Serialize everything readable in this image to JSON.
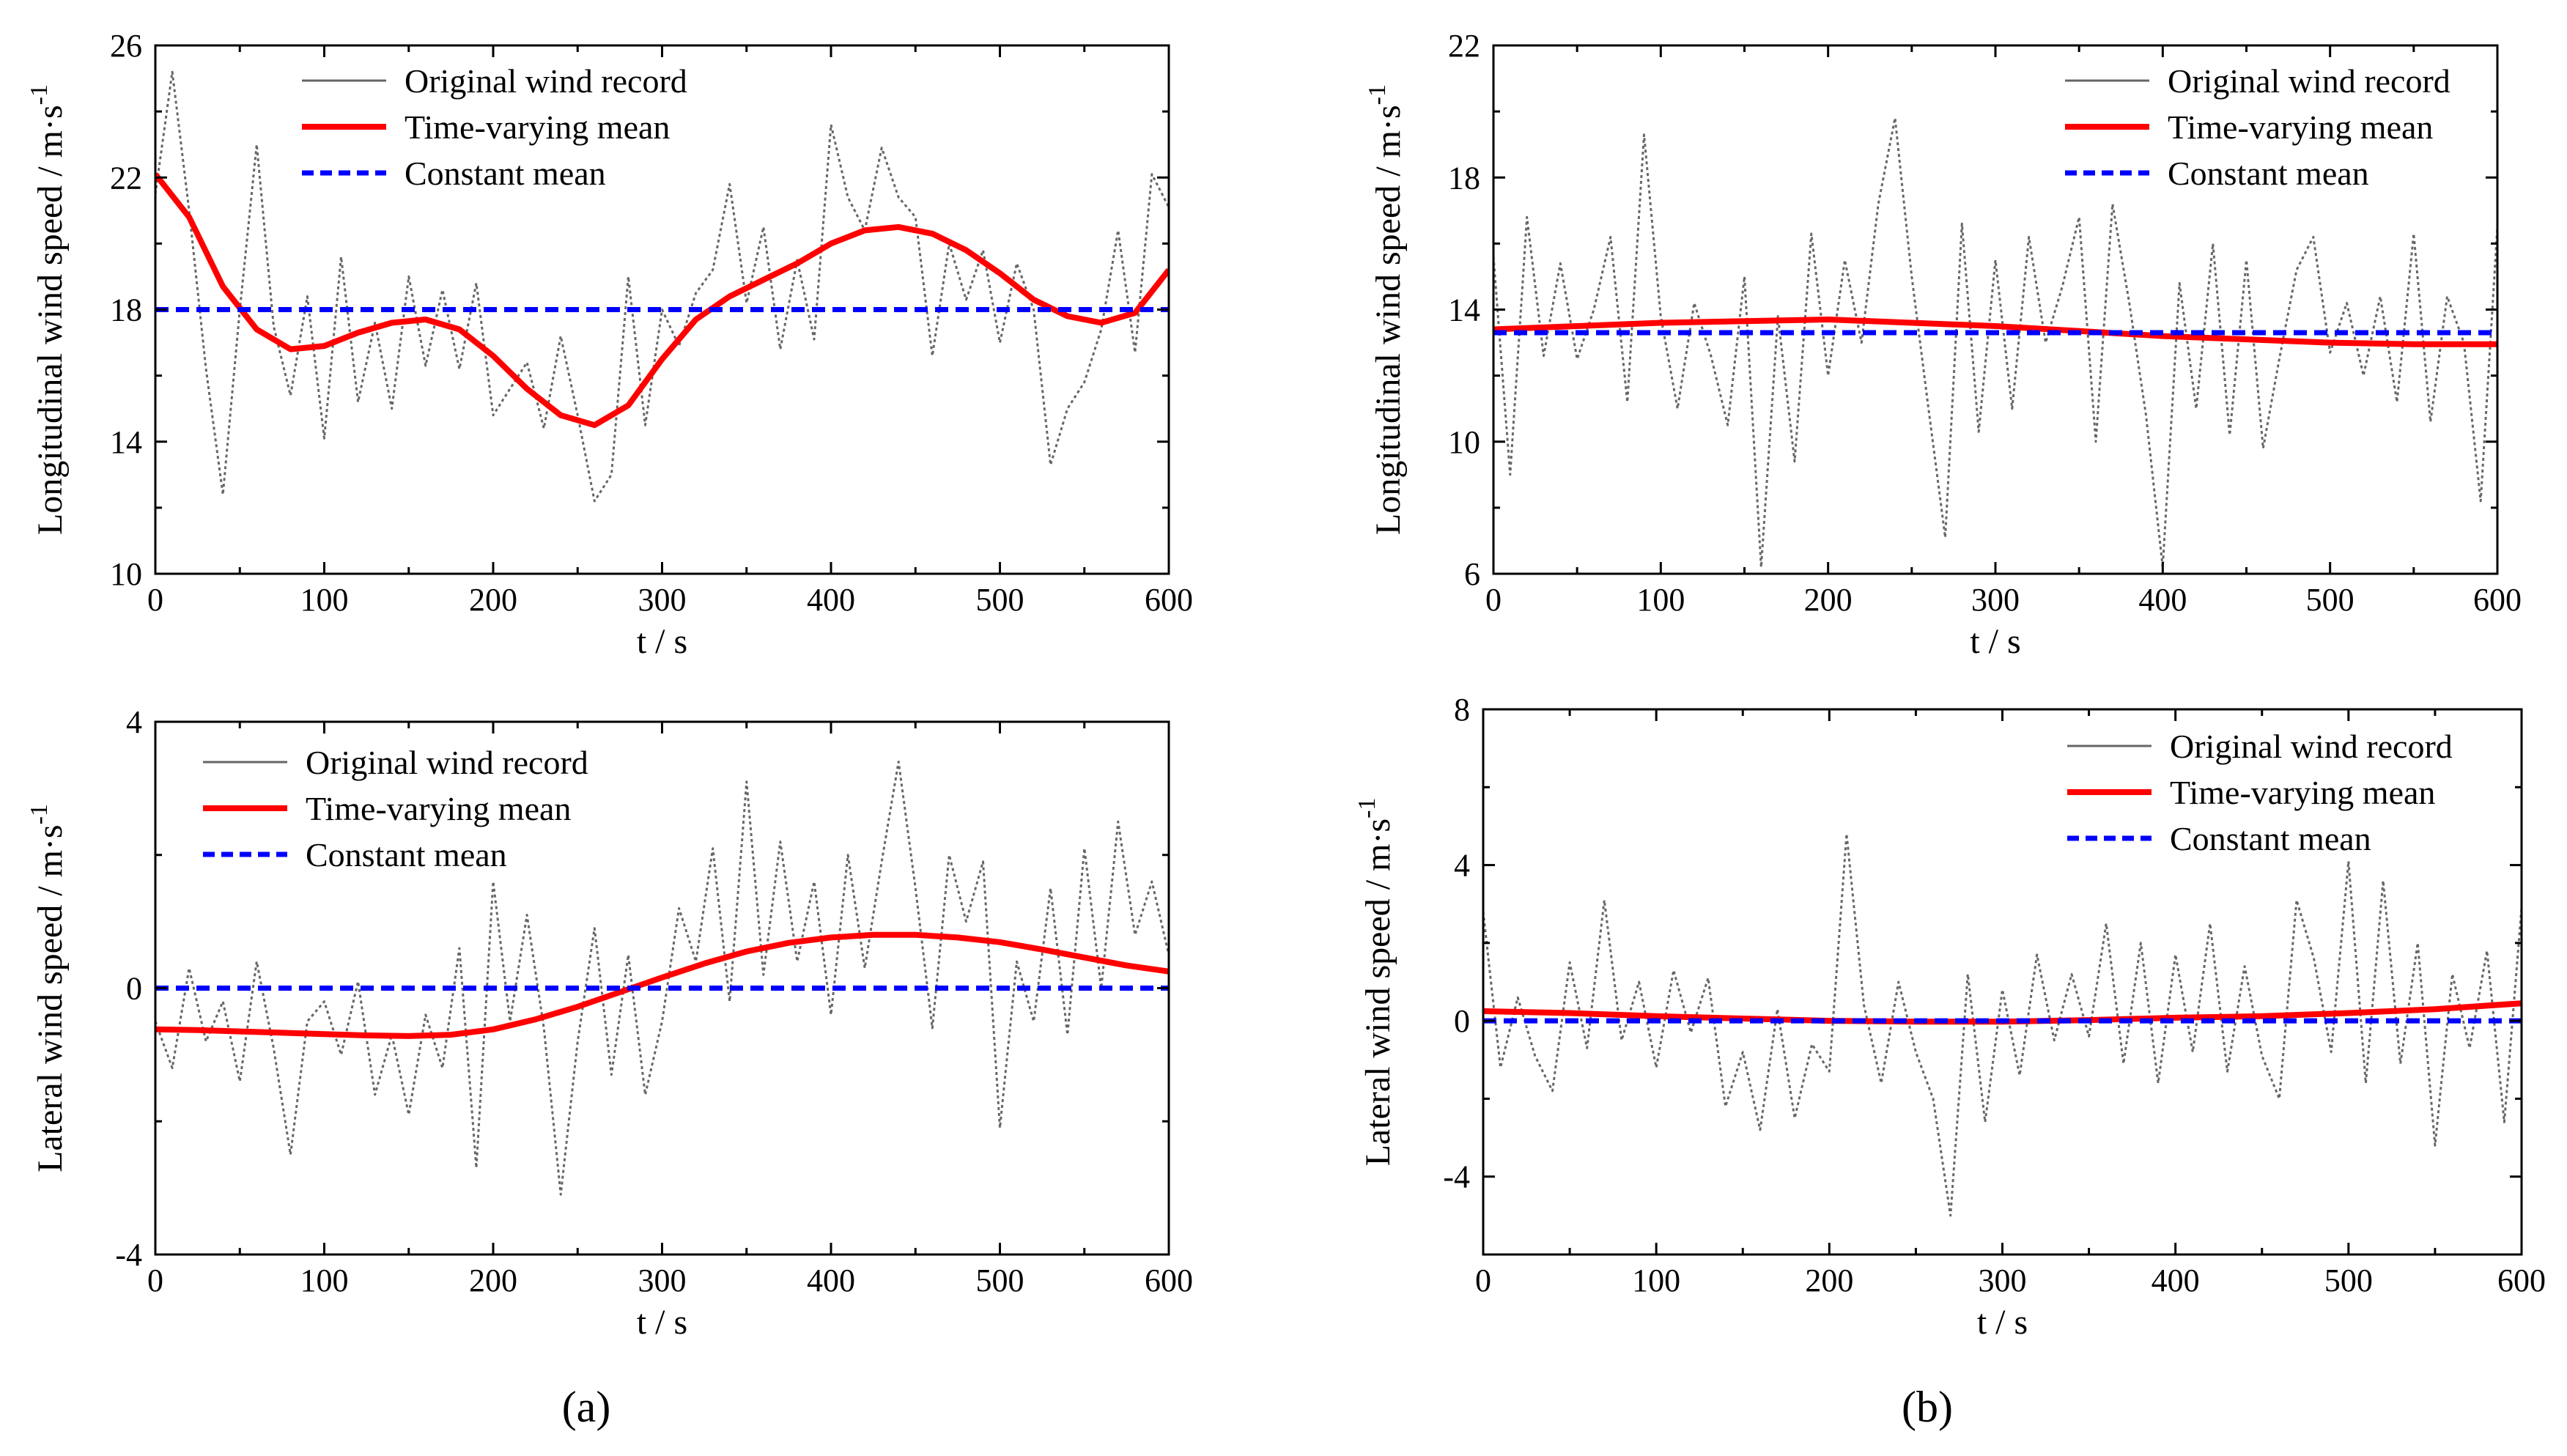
{
  "panel_labels": [
    "(a)",
    "(b)"
  ],
  "colors": {
    "raw": "#666666",
    "tv": "#ff0000",
    "const": "#0000ff",
    "axis": "#000000"
  },
  "chart_data": [
    {
      "type": "line",
      "panel": "a",
      "position_in_grid": "top-left",
      "xlabel": "t / s",
      "ylabel": "Longitudinal wind speed / m·s",
      "ylabel_sup": "-1",
      "xlim": [
        0,
        600
      ],
      "ylim": [
        10,
        26
      ],
      "xticks": [
        0,
        100,
        200,
        300,
        400,
        500,
        600
      ],
      "yticks": [
        10,
        14,
        18,
        22,
        26
      ],
      "legend_position": "top-left",
      "series": [
        {
          "name": "Original wind record",
          "style": "dotted-gray",
          "x": [
            0,
            10,
            20,
            30,
            40,
            50,
            60,
            70,
            80,
            90,
            100,
            110,
            120,
            130,
            140,
            150,
            160,
            170,
            180,
            190,
            200,
            210,
            220,
            230,
            240,
            250,
            260,
            270,
            280,
            290,
            300,
            310,
            320,
            330,
            340,
            350,
            360,
            370,
            380,
            390,
            400,
            410,
            420,
            430,
            440,
            450,
            460,
            470,
            480,
            490,
            500,
            510,
            520,
            530,
            540,
            550,
            560,
            570,
            580,
            590,
            600
          ],
          "y": [
            21.5,
            25.2,
            21.0,
            16.2,
            12.4,
            18.0,
            23.0,
            17.5,
            15.4,
            18.4,
            14.1,
            19.6,
            15.2,
            17.6,
            15.0,
            19.0,
            16.3,
            18.6,
            16.2,
            18.8,
            14.8,
            15.6,
            16.4,
            14.4,
            17.2,
            14.8,
            12.2,
            13.0,
            19.0,
            14.5,
            18.0,
            16.9,
            18.5,
            19.2,
            21.8,
            18.2,
            20.5,
            16.8,
            19.5,
            17.1,
            23.6,
            21.4,
            20.4,
            22.9,
            21.4,
            20.8,
            16.6,
            20.0,
            18.3,
            19.8,
            17.0,
            19.4,
            18.0,
            13.3,
            15.0,
            15.8,
            17.4,
            20.4,
            16.7,
            22.1,
            21.1
          ]
        },
        {
          "name": "Time-varying mean",
          "style": "solid-red",
          "x": [
            0,
            20,
            40,
            60,
            80,
            100,
            120,
            140,
            160,
            180,
            200,
            220,
            240,
            260,
            280,
            300,
            320,
            340,
            360,
            380,
            400,
            420,
            440,
            460,
            480,
            500,
            520,
            540,
            560,
            580,
            600
          ],
          "y": [
            22.1,
            20.8,
            18.7,
            17.4,
            16.8,
            16.9,
            17.3,
            17.6,
            17.7,
            17.4,
            16.6,
            15.6,
            14.8,
            14.5,
            15.1,
            16.5,
            17.7,
            18.4,
            18.9,
            19.4,
            20.0,
            20.4,
            20.5,
            20.3,
            19.8,
            19.1,
            18.3,
            17.8,
            17.6,
            17.9,
            19.2
          ]
        },
        {
          "name": "Constant mean",
          "style": "dashed-blue",
          "x": [
            0,
            600
          ],
          "y": [
            18.0,
            18.0
          ]
        }
      ]
    },
    {
      "type": "line",
      "panel": "b",
      "position_in_grid": "top-right",
      "xlabel": "t / s",
      "ylabel": "Longitudinal wind speed / m·s",
      "ylabel_sup": "-1",
      "xlim": [
        0,
        600
      ],
      "ylim": [
        6,
        22
      ],
      "xticks": [
        0,
        100,
        200,
        300,
        400,
        500,
        600
      ],
      "yticks": [
        6,
        10,
        14,
        18,
        22
      ],
      "legend_position": "top-right",
      "series": [
        {
          "name": "Original wind record",
          "style": "dotted-gray",
          "x": [
            0,
            10,
            20,
            30,
            40,
            50,
            60,
            70,
            80,
            90,
            100,
            110,
            120,
            130,
            140,
            150,
            160,
            170,
            180,
            190,
            200,
            210,
            220,
            230,
            240,
            250,
            260,
            270,
            280,
            290,
            300,
            310,
            320,
            330,
            340,
            350,
            360,
            370,
            380,
            390,
            400,
            410,
            420,
            430,
            440,
            450,
            460,
            470,
            480,
            490,
            500,
            510,
            520,
            530,
            540,
            550,
            560,
            570,
            580,
            590,
            600
          ],
          "y": [
            15.6,
            9.0,
            16.8,
            12.6,
            15.4,
            12.5,
            14.0,
            16.2,
            11.2,
            19.3,
            13.8,
            11.0,
            14.2,
            12.6,
            10.5,
            15.0,
            6.2,
            13.8,
            9.4,
            16.3,
            12.0,
            15.5,
            13.0,
            17.2,
            19.8,
            15.0,
            11.0,
            7.1,
            16.6,
            10.3,
            15.5,
            11.0,
            16.2,
            13.0,
            14.7,
            16.8,
            10.0,
            17.2,
            14.2,
            10.8,
            6.2,
            14.8,
            11.0,
            16.0,
            10.2,
            15.5,
            9.8,
            12.6,
            15.2,
            16.2,
            12.7,
            14.2,
            12.0,
            14.4,
            11.2,
            16.3,
            10.6,
            14.4,
            13.0,
            8.2,
            16.5
          ]
        },
        {
          "name": "Time-varying mean",
          "style": "solid-red",
          "x": [
            0,
            50,
            100,
            150,
            200,
            250,
            300,
            350,
            400,
            450,
            500,
            550,
            600
          ],
          "y": [
            13.4,
            13.5,
            13.6,
            13.65,
            13.7,
            13.6,
            13.5,
            13.35,
            13.2,
            13.1,
            13.0,
            12.95,
            12.95
          ]
        },
        {
          "name": "Constant mean",
          "style": "dashed-blue",
          "x": [
            0,
            600
          ],
          "y": [
            13.3,
            13.3
          ]
        }
      ]
    },
    {
      "type": "line",
      "panel": "a",
      "position_in_grid": "bottom-left",
      "xlabel": "t / s",
      "ylabel": "Lateral wind speed / m·s",
      "ylabel_sup": "-1",
      "xlim": [
        0,
        600
      ],
      "ylim": [
        -4,
        4
      ],
      "xticks": [
        0,
        100,
        200,
        300,
        400,
        500,
        600
      ],
      "yticks": [
        -4,
        0,
        4
      ],
      "legend_position": "top-left",
      "series": [
        {
          "name": "Original wind record",
          "style": "dotted-gray",
          "x": [
            0,
            10,
            20,
            30,
            40,
            50,
            60,
            70,
            80,
            90,
            100,
            110,
            120,
            130,
            140,
            150,
            160,
            170,
            180,
            190,
            200,
            210,
            220,
            230,
            240,
            250,
            260,
            270,
            280,
            290,
            300,
            310,
            320,
            330,
            340,
            350,
            360,
            370,
            380,
            390,
            400,
            410,
            420,
            430,
            440,
            450,
            460,
            470,
            480,
            490,
            500,
            510,
            520,
            530,
            540,
            550,
            560,
            570,
            580,
            590,
            600
          ],
          "y": [
            -0.5,
            -1.2,
            0.3,
            -0.8,
            -0.2,
            -1.4,
            0.4,
            -0.9,
            -2.5,
            -0.5,
            -0.2,
            -1.0,
            0.1,
            -1.6,
            -0.7,
            -1.9,
            -0.4,
            -1.2,
            0.6,
            -2.7,
            1.6,
            -0.5,
            1.1,
            -0.6,
            -3.1,
            -0.8,
            0.9,
            -1.3,
            0.5,
            -1.6,
            -0.5,
            1.2,
            0.4,
            2.1,
            -0.2,
            3.1,
            0.2,
            2.2,
            0.4,
            1.6,
            -0.4,
            2.0,
            0.3,
            1.9,
            3.4,
            1.5,
            -0.6,
            2.0,
            1.0,
            1.9,
            -2.1,
            0.4,
            -0.5,
            1.5,
            -0.7,
            2.1,
            0.0,
            2.5,
            0.8,
            1.6,
            0.5
          ]
        },
        {
          "name": "Time-varying mean",
          "style": "solid-red",
          "x": [
            0,
            25,
            50,
            75,
            100,
            125,
            150,
            175,
            200,
            225,
            250,
            275,
            300,
            325,
            350,
            375,
            400,
            425,
            450,
            475,
            500,
            525,
            550,
            575,
            600
          ],
          "y": [
            -0.62,
            -0.63,
            -0.65,
            -0.67,
            -0.69,
            -0.71,
            -0.72,
            -0.7,
            -0.62,
            -0.47,
            -0.28,
            -0.06,
            0.16,
            0.37,
            0.55,
            0.68,
            0.76,
            0.8,
            0.8,
            0.76,
            0.69,
            0.58,
            0.46,
            0.34,
            0.25
          ]
        },
        {
          "name": "Constant mean",
          "style": "dashed-blue",
          "x": [
            0,
            600
          ],
          "y": [
            0.0,
            0.0
          ]
        }
      ]
    },
    {
      "type": "line",
      "panel": "b",
      "position_in_grid": "bottom-right",
      "xlabel": "t / s",
      "ylabel": "Lateral wind speed / m·s",
      "ylabel_sup": "-1",
      "xlim": [
        0,
        600
      ],
      "ylim": [
        -6,
        8
      ],
      "xticks": [
        0,
        100,
        200,
        300,
        400,
        500,
        600
      ],
      "yticks": [
        -4,
        0,
        4,
        8
      ],
      "legend_position": "top-right",
      "series": [
        {
          "name": "Original wind record",
          "style": "dotted-gray",
          "x": [
            0,
            10,
            20,
            30,
            40,
            50,
            60,
            70,
            80,
            90,
            100,
            110,
            120,
            130,
            140,
            150,
            160,
            170,
            180,
            190,
            200,
            210,
            220,
            230,
            240,
            250,
            260,
            270,
            280,
            290,
            300,
            310,
            320,
            330,
            340,
            350,
            360,
            370,
            380,
            390,
            400,
            410,
            420,
            430,
            440,
            450,
            460,
            470,
            480,
            490,
            500,
            510,
            520,
            530,
            540,
            550,
            560,
            570,
            580,
            590,
            600
          ],
          "y": [
            2.8,
            -1.2,
            0.6,
            -0.9,
            -1.8,
            1.5,
            -0.7,
            3.1,
            -0.5,
            1.0,
            -1.2,
            1.3,
            -0.3,
            1.1,
            -2.2,
            -0.8,
            -2.8,
            0.3,
            -2.5,
            -0.6,
            -1.3,
            4.8,
            0.4,
            -1.6,
            1.0,
            -0.8,
            -2.0,
            -5.0,
            1.2,
            -2.6,
            0.8,
            -1.4,
            1.7,
            -0.5,
            1.2,
            -0.4,
            2.5,
            -1.1,
            2.0,
            -1.6,
            1.7,
            -0.8,
            2.5,
            -1.3,
            1.4,
            -0.9,
            -2.0,
            3.1,
            1.6,
            -0.8,
            4.1,
            -1.6,
            3.6,
            -1.1,
            2.0,
            -3.2,
            1.2,
            -0.7,
            1.8,
            -2.6,
            2.9
          ]
        },
        {
          "name": "Time-varying mean",
          "style": "solid-red",
          "x": [
            0,
            50,
            100,
            150,
            200,
            250,
            300,
            350,
            400,
            450,
            500,
            550,
            600
          ],
          "y": [
            0.25,
            0.2,
            0.12,
            0.06,
            0.0,
            -0.02,
            -0.02,
            0.02,
            0.08,
            0.12,
            0.2,
            0.3,
            0.45
          ]
        },
        {
          "name": "Constant mean",
          "style": "dashed-blue",
          "x": [
            0,
            600
          ],
          "y": [
            0.0,
            0.0
          ]
        }
      ]
    }
  ]
}
